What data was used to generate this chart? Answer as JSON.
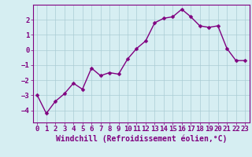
{
  "x": [
    0,
    1,
    2,
    3,
    4,
    5,
    6,
    7,
    8,
    9,
    10,
    11,
    12,
    13,
    14,
    15,
    16,
    17,
    18,
    19,
    20,
    21,
    22,
    23
  ],
  "y": [
    -3.0,
    -4.2,
    -3.4,
    -2.9,
    -2.2,
    -2.6,
    -1.2,
    -1.7,
    -1.5,
    -1.6,
    -0.6,
    0.1,
    0.6,
    1.8,
    2.1,
    2.2,
    2.7,
    2.2,
    1.6,
    1.5,
    1.6,
    0.1,
    -0.7,
    -0.7
  ],
  "line_color": "#800080",
  "marker": "D",
  "marker_size": 2.5,
  "bg_color": "#d6eef2",
  "grid_color": "#aaccd4",
  "axis_color": "#800080",
  "tick_color": "#800080",
  "xlabel": "Windchill (Refroidissement éolien,°C)",
  "xlabel_fontsize": 7,
  "tick_fontsize": 6.5,
  "ylim": [
    -4.8,
    3.0
  ],
  "yticks": [
    -4,
    -3,
    -2,
    -1,
    0,
    1,
    2
  ],
  "xticks": [
    0,
    1,
    2,
    3,
    4,
    5,
    6,
    7,
    8,
    9,
    10,
    11,
    12,
    13,
    14,
    15,
    16,
    17,
    18,
    19,
    20,
    21,
    22,
    23
  ],
  "line_width": 1.0,
  "spine_color": "#800080"
}
